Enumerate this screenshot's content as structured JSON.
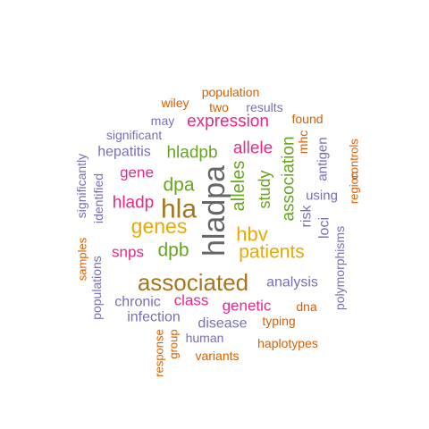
{
  "palette": {
    "gray": "#666666",
    "olive": "#a6761d",
    "gold": "#e6ab02",
    "green": "#66a61e",
    "magenta": "#e7298a",
    "purple": "#7570b3",
    "orange": "#d95f02"
  },
  "words": [
    {
      "text": "hladpa",
      "color": "gray"
    },
    {
      "text": "hla",
      "color": "olive"
    },
    {
      "text": "associated",
      "color": "olive"
    },
    {
      "text": "genes",
      "color": "gold"
    },
    {
      "text": "patients",
      "color": "gold"
    },
    {
      "text": "hbv",
      "color": "gold"
    },
    {
      "text": "alleles",
      "color": "green"
    },
    {
      "text": "association",
      "color": "green"
    },
    {
      "text": "study",
      "color": "green"
    },
    {
      "text": "dpa",
      "color": "green"
    },
    {
      "text": "dpb",
      "color": "green"
    },
    {
      "text": "hladpb",
      "color": "green"
    },
    {
      "text": "expression",
      "color": "magenta"
    },
    {
      "text": "allele",
      "color": "magenta"
    },
    {
      "text": "hladp",
      "color": "magenta"
    },
    {
      "text": "gene",
      "color": "magenta"
    },
    {
      "text": "snps",
      "color": "magenta"
    },
    {
      "text": "class",
      "color": "magenta"
    },
    {
      "text": "genetic",
      "color": "magenta"
    },
    {
      "text": "mhc",
      "color": "orange"
    },
    {
      "text": "hepatitis",
      "color": "purple"
    },
    {
      "text": "analysis",
      "color": "purple"
    },
    {
      "text": "risk",
      "color": "purple"
    },
    {
      "text": "loci",
      "color": "purple"
    },
    {
      "text": "antigen",
      "color": "purple"
    },
    {
      "text": "using",
      "color": "purple"
    },
    {
      "text": "infection",
      "color": "purple"
    },
    {
      "text": "disease",
      "color": "purple"
    },
    {
      "text": "chronic",
      "color": "purple"
    },
    {
      "text": "population",
      "color": "orange"
    },
    {
      "text": "wiley",
      "color": "orange"
    },
    {
      "text": "two",
      "color": "orange"
    },
    {
      "text": "results",
      "color": "purple"
    },
    {
      "text": "may",
      "color": "purple"
    },
    {
      "text": "found",
      "color": "orange"
    },
    {
      "text": "significant",
      "color": "purple"
    },
    {
      "text": "significantly",
      "color": "purple"
    },
    {
      "text": "identified",
      "color": "purple"
    },
    {
      "text": "samples",
      "color": "orange"
    },
    {
      "text": "populations",
      "color": "purple"
    },
    {
      "text": "region",
      "color": "orange"
    },
    {
      "text": "controls",
      "color": "orange"
    },
    {
      "text": "polymorphisms",
      "color": "purple"
    },
    {
      "text": "dna",
      "color": "orange"
    },
    {
      "text": "typing",
      "color": "orange"
    },
    {
      "text": "human",
      "color": "purple"
    },
    {
      "text": "haplotypes",
      "color": "orange"
    },
    {
      "text": "response",
      "color": "orange"
    },
    {
      "text": "group",
      "color": "orange"
    },
    {
      "text": "variants",
      "color": "orange"
    }
  ]
}
